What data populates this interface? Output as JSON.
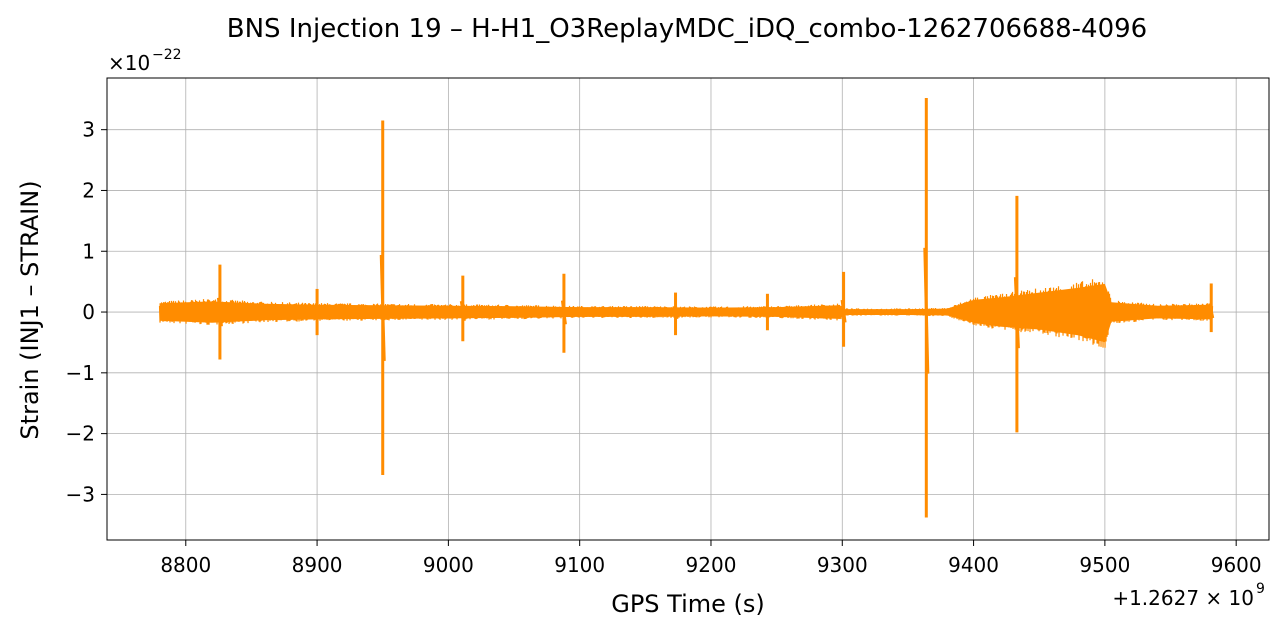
{
  "chart_data": {
    "type": "line",
    "title": "BNS Injection 19 – H-H1_O3ReplayMDC_iDQ_combo-1262706688-4096",
    "xlabel": "GPS Time (s)",
    "ylabel": "Strain (INJ1 – STRAIN)",
    "x_offset_label": "+1.2627 × 10",
    "x_offset_exponent": "9",
    "y_scale_label": "×10",
    "y_scale_exponent": "−22",
    "xlim": [
      8740,
      9625
    ],
    "ylim": [
      -3.75,
      3.85
    ],
    "x_ticks": [
      8800,
      8900,
      9000,
      9100,
      9200,
      9300,
      9400,
      9500,
      9600
    ],
    "x_tick_labels": [
      "8800",
      "8900",
      "9000",
      "9100",
      "9200",
      "9300",
      "9400",
      "9500",
      "9600"
    ],
    "y_ticks": [
      -3,
      -2,
      -1,
      0,
      1,
      2,
      3
    ],
    "y_tick_labels": [
      "−3",
      "−2",
      "−1",
      "0",
      "1",
      "2",
      "3"
    ],
    "grid": true,
    "series": [
      {
        "color": "#ff8c00",
        "x_range": [
          8780,
          9582
        ],
        "envelope": [
          {
            "x": 8780,
            "upper": 0.18,
            "lower": -0.18
          },
          {
            "x": 8820,
            "upper": 0.22,
            "lower": -0.22
          },
          {
            "x": 8860,
            "upper": 0.17,
            "lower": -0.17
          },
          {
            "x": 8900,
            "upper": 0.15,
            "lower": -0.15
          },
          {
            "x": 8950,
            "upper": 0.14,
            "lower": -0.14
          },
          {
            "x": 9000,
            "upper": 0.13,
            "lower": -0.13
          },
          {
            "x": 9050,
            "upper": 0.12,
            "lower": -0.12
          },
          {
            "x": 9100,
            "upper": 0.1,
            "lower": -0.1
          },
          {
            "x": 9150,
            "upper": 0.1,
            "lower": -0.1
          },
          {
            "x": 9200,
            "upper": 0.09,
            "lower": -0.09
          },
          {
            "x": 9250,
            "upper": 0.1,
            "lower": -0.1
          },
          {
            "x": 9298,
            "upper": 0.14,
            "lower": -0.14
          },
          {
            "x": 9302,
            "upper": 0.06,
            "lower": -0.06
          },
          {
            "x": 9350,
            "upper": 0.06,
            "lower": -0.06
          },
          {
            "x": 9380,
            "upper": 0.07,
            "lower": -0.07
          },
          {
            "x": 9400,
            "upper": 0.25,
            "lower": -0.22
          },
          {
            "x": 9420,
            "upper": 0.3,
            "lower": -0.3
          },
          {
            "x": 9450,
            "upper": 0.4,
            "lower": -0.36
          },
          {
            "x": 9480,
            "upper": 0.5,
            "lower": -0.48
          },
          {
            "x": 9500,
            "upper": 0.58,
            "lower": -0.62
          },
          {
            "x": 9505,
            "upper": 0.2,
            "lower": -0.2
          },
          {
            "x": 9540,
            "upper": 0.13,
            "lower": -0.13
          },
          {
            "x": 9582,
            "upper": 0.15,
            "lower": -0.15
          }
        ],
        "spikes": [
          {
            "x": 8826,
            "max": 0.78,
            "min": -0.78
          },
          {
            "x": 8900,
            "max": 0.38,
            "min": -0.38
          },
          {
            "x": 8950,
            "max": 3.15,
            "min": -2.68
          },
          {
            "x": 9011,
            "max": 0.6,
            "min": -0.48
          },
          {
            "x": 9088,
            "max": 0.63,
            "min": -0.67
          },
          {
            "x": 9173,
            "max": 0.32,
            "min": -0.38
          },
          {
            "x": 9243,
            "max": 0.3,
            "min": -0.3
          },
          {
            "x": 9301,
            "max": 0.66,
            "min": -0.57
          },
          {
            "x": 9364,
            "max": 3.52,
            "min": -3.38
          },
          {
            "x": 9433,
            "max": 1.91,
            "min": -1.98
          },
          {
            "x": 9581,
            "max": 0.47,
            "min": -0.33
          }
        ]
      }
    ]
  }
}
